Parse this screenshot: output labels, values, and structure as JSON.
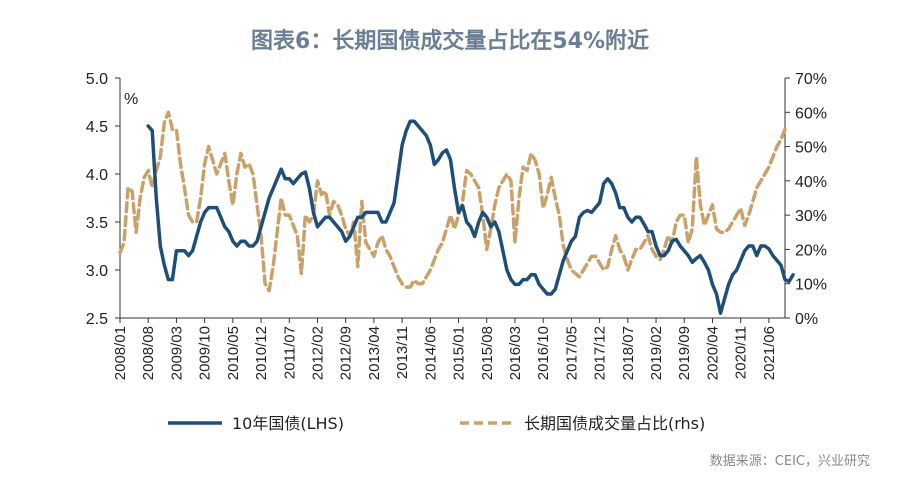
{
  "chart_data": {
    "type": "line",
    "title": "图表6：长期国债成交量占比在54%附近",
    "unit_label": "%",
    "source": "数据来源：CEIC，兴业研究",
    "colors": {
      "lhs": "#1f4e79",
      "rhs": "#c9a26b",
      "title": "#6a7f95"
    },
    "left_axis": {
      "ylim": [
        2.5,
        5.0
      ],
      "ticks": [
        2.5,
        3.0,
        3.5,
        4.0,
        4.5,
        5.0
      ],
      "tick_labels": [
        "2.5",
        "3.0",
        "3.5",
        "4.0",
        "4.5",
        "5.0"
      ]
    },
    "right_axis": {
      "ylim": [
        0,
        70
      ],
      "ticks": [
        0,
        10,
        20,
        30,
        40,
        50,
        60,
        70
      ],
      "tick_labels": [
        "0%",
        "10%",
        "20%",
        "30%",
        "40%",
        "50%",
        "60%",
        "70%"
      ]
    },
    "x_axis": {
      "start": "2008-01",
      "end": "2021-10",
      "tick_labels": [
        "2008/01",
        "2008/08",
        "2009/03",
        "2009/10",
        "2010/05",
        "2010/12",
        "2011/07",
        "2012/02",
        "2012/09",
        "2013/04",
        "2013/11",
        "2014/06",
        "2015/01",
        "2015/08",
        "2016/03",
        "2016/10",
        "2017/05",
        "2017/12",
        "2018/07",
        "2019/02",
        "2019/09",
        "2020/04",
        "2020/11",
        "2021/06"
      ]
    },
    "series": [
      {
        "name": "10年国债(LHS)",
        "axis": "left",
        "style": "solid",
        "start_index": 7,
        "values": [
          4.5,
          4.45,
          3.75,
          3.25,
          3.05,
          2.9,
          2.9,
          3.2,
          3.2,
          3.2,
          3.15,
          3.2,
          3.35,
          3.5,
          3.6,
          3.65,
          3.65,
          3.65,
          3.55,
          3.45,
          3.4,
          3.3,
          3.25,
          3.3,
          3.3,
          3.25,
          3.25,
          3.3,
          3.45,
          3.6,
          3.75,
          3.85,
          3.95,
          4.05,
          3.95,
          3.95,
          3.9,
          3.95,
          4.0,
          4.02,
          3.85,
          3.6,
          3.45,
          3.5,
          3.55,
          3.55,
          3.5,
          3.45,
          3.4,
          3.3,
          3.35,
          3.45,
          3.55,
          3.55,
          3.6,
          3.6,
          3.6,
          3.6,
          3.5,
          3.5,
          3.6,
          3.7,
          4.0,
          4.3,
          4.45,
          4.55,
          4.55,
          4.5,
          4.45,
          4.4,
          4.3,
          4.1,
          4.15,
          4.22,
          4.25,
          4.15,
          3.85,
          3.6,
          3.67,
          3.5,
          3.45,
          3.35,
          3.5,
          3.6,
          3.55,
          3.45,
          3.5,
          3.4,
          3.2,
          3.0,
          2.9,
          2.85,
          2.85,
          2.9,
          2.9,
          2.95,
          2.95,
          2.85,
          2.8,
          2.75,
          2.75,
          2.8,
          2.95,
          3.1,
          3.2,
          3.3,
          3.35,
          3.55,
          3.6,
          3.62,
          3.6,
          3.65,
          3.7,
          3.9,
          3.95,
          3.9,
          3.8,
          3.65,
          3.65,
          3.55,
          3.5,
          3.55,
          3.55,
          3.48,
          3.4,
          3.4,
          3.25,
          3.15,
          3.15,
          3.2,
          3.3,
          3.32,
          3.25,
          3.2,
          3.15,
          3.08,
          3.12,
          3.15,
          3.08,
          3.0,
          2.85,
          2.75,
          2.55,
          2.7,
          2.85,
          2.95,
          3.0,
          3.1,
          3.2,
          3.25,
          3.25,
          3.15,
          3.25,
          3.25,
          3.22,
          3.15,
          3.1,
          3.05,
          2.9,
          2.88,
          2.95
        ]
      },
      {
        "name": "长期国债成交量占比(rhs)",
        "axis": "right",
        "style": "dashed",
        "start_index": 0,
        "values": [
          19,
          22,
          38,
          37,
          25,
          35,
          41,
          43,
          38,
          43,
          47,
          57,
          60,
          55,
          55,
          45,
          38,
          30,
          28,
          28,
          35,
          45,
          50,
          46,
          42,
          45,
          48,
          40,
          33,
          42,
          48,
          44,
          45,
          42,
          33,
          24,
          10,
          8,
          15,
          25,
          35,
          30,
          30,
          27,
          24,
          13,
          30,
          28,
          30,
          40,
          36,
          37,
          30,
          34,
          33,
          30,
          26,
          24,
          28,
          15,
          34,
          22,
          20,
          18,
          22,
          24,
          20,
          18,
          15,
          12,
          10,
          9,
          9,
          11,
          10,
          10,
          12,
          14,
          17,
          20,
          22,
          26,
          30,
          26,
          30,
          34,
          43,
          42,
          40,
          38,
          30,
          20,
          26,
          33,
          38,
          40,
          42,
          40,
          22,
          35,
          44,
          43,
          48,
          46,
          42,
          32,
          36,
          41,
          35,
          30,
          21,
          17,
          14,
          13,
          12,
          14,
          16,
          18,
          18,
          16,
          14,
          15,
          20,
          24,
          20,
          18,
          14,
          17,
          20,
          20,
          22,
          24,
          20,
          18,
          17,
          20,
          24,
          22,
          28,
          30,
          30,
          22,
          26,
          47,
          33,
          27,
          30,
          33,
          26,
          25,
          25,
          26,
          28,
          30,
          32,
          27,
          30,
          34,
          38,
          40,
          42,
          44,
          47,
          50,
          52,
          55
        ]
      }
    ]
  }
}
